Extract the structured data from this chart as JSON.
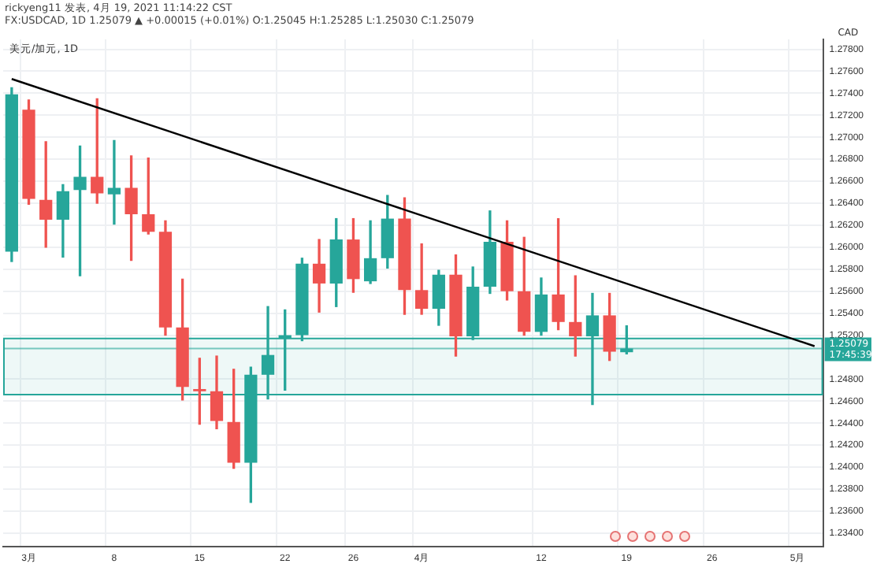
{
  "chart_data": {
    "type": "candlestick",
    "title": "美元/加元, 1D",
    "subtitle": "FX:USDCAD, 1D 1.25079 ▲ +0.00015 (+0.01%) O:1.25045 H:1.25285 L:1.25030 C:1.25079",
    "annotations": [
      "rickyeng11 发表, 4月 19, 2021 11:14:22 CST"
    ],
    "ylabel": "CAD",
    "categories": [
      null,
      "3月",
      null,
      null,
      null,
      null,
      "8",
      null,
      null,
      null,
      null,
      "15",
      null,
      null,
      null,
      null,
      "22",
      null,
      null,
      null,
      "26",
      null,
      null,
      null,
      "4月",
      null,
      null,
      null,
      null,
      null,
      null,
      "12",
      null,
      null,
      null,
      null,
      "19",
      null,
      null,
      null,
      null,
      "26",
      null,
      null,
      null,
      null,
      "5月",
      null
    ],
    "ohlc": [
      [
        1.2596,
        1.2745,
        1.2587,
        1.2739
      ],
      [
        1.2725,
        1.2734,
        1.2639,
        1.2644
      ],
      [
        1.2643,
        1.2696,
        1.26,
        1.2625
      ],
      [
        1.2625,
        1.2657,
        1.2591,
        1.2651
      ],
      [
        1.2652,
        1.2692,
        1.2574,
        1.2664
      ],
      [
        1.2664,
        1.2735,
        1.264,
        1.2649
      ],
      [
        1.2648,
        1.2697,
        1.2621,
        1.2654
      ],
      [
        1.2654,
        1.2683,
        1.2588,
        1.263
      ],
      [
        1.263,
        1.2681,
        1.2612,
        1.2614
      ],
      [
        1.2614,
        1.2624,
        1.252,
        1.2527
      ],
      [
        1.2527,
        1.2571,
        1.2461,
        1.2473
      ],
      [
        1.2471,
        1.2499,
        1.2439,
        1.2469
      ],
      [
        1.2469,
        1.2501,
        1.2435,
        1.2442
      ],
      [
        1.2441,
        1.2489,
        1.2399,
        1.2404
      ],
      [
        1.2404,
        1.2491,
        1.2368,
        1.2484
      ],
      [
        1.2484,
        1.2546,
        1.2462,
        1.2502
      ],
      [
        1.2517,
        1.2543,
        1.247,
        1.252
      ],
      [
        1.252,
        1.259,
        1.2515,
        1.2585
      ],
      [
        1.2585,
        1.2607,
        1.2541,
        1.2567
      ],
      [
        1.2567,
        1.2626,
        1.2546,
        1.2607
      ],
      [
        1.2607,
        1.2626,
        1.2559,
        1.2571
      ],
      [
        1.2569,
        1.2624,
        1.2567,
        1.259
      ],
      [
        1.259,
        1.2647,
        1.2581,
        1.2626
      ],
      [
        1.2626,
        1.2645,
        1.2539,
        1.2561
      ],
      [
        1.2561,
        1.2603,
        1.2539,
        1.2544
      ],
      [
        1.2544,
        1.2579,
        1.2529,
        1.2575
      ],
      [
        1.2575,
        1.2593,
        1.2501,
        1.2519
      ],
      [
        1.2519,
        1.2582,
        1.2516,
        1.2564
      ],
      [
        1.2564,
        1.2633,
        1.2558,
        1.2605
      ],
      [
        1.2605,
        1.2624,
        1.2552,
        1.256
      ],
      [
        1.256,
        1.2609,
        1.252,
        1.2523
      ],
      [
        1.2523,
        1.2572,
        1.252,
        1.2557
      ],
      [
        1.2557,
        1.2626,
        1.2525,
        1.2532
      ],
      [
        1.2532,
        1.2574,
        1.2501,
        1.2519
      ],
      [
        1.2519,
        1.2558,
        1.2457,
        1.2538
      ],
      [
        1.2538,
        1.2558,
        1.2497,
        1.2505
      ],
      [
        1.25045,
        1.25285,
        1.2503,
        1.25079
      ],
      null,
      null,
      null,
      null,
      null,
      null,
      null,
      null,
      null,
      null,
      null
    ],
    "colors": [
      "#26a69a",
      "#ef5350",
      "#ef5350",
      "#26a69a",
      "#26a69a",
      "#ef5350",
      "#26a69a",
      "#ef5350",
      "#ef5350",
      "#ef5350",
      "#ef5350",
      "#ef5350",
      "#ef5350",
      "#ef5350",
      "#26a69a",
      "#26a69a",
      "#26a69a",
      "#26a69a",
      "#ef5350",
      "#26a69a",
      "#ef5350",
      "#26a69a",
      "#26a69a",
      "#ef5350",
      "#ef5350",
      "#26a69a",
      "#ef5350",
      "#26a69a",
      "#26a69a",
      "#ef5350",
      "#ef5350",
      "#26a69a",
      "#ef5350",
      "#ef5350",
      "#26a69a",
      "#ef5350",
      "#26a69a",
      null,
      null,
      null,
      null,
      null,
      null,
      null,
      null,
      null,
      null,
      null
    ],
    "series": [
      {
        "type": "line",
        "color": "#000000",
        "values": [
          1.2753,
          null,
          null,
          null,
          null,
          null,
          null,
          null,
          null,
          null,
          null,
          null,
          null,
          null,
          null,
          null,
          null,
          null,
          null,
          null,
          null,
          null,
          null,
          null,
          null,
          null,
          null,
          null,
          null,
          null,
          null,
          null,
          null,
          null,
          null,
          null,
          null,
          null,
          null,
          null,
          null,
          null,
          null,
          null,
          null,
          null,
          null,
          1.251
        ]
      }
    ],
    "ref_lines": [
      {
        "axis": "y",
        "value": 1.25079,
        "label": "1.25079 17:45:39",
        "color": "#26a69a"
      }
    ],
    "bands": [
      {
        "axis": "y",
        "from": 1.2466,
        "to": 1.2517,
        "color": "#26a69a"
      }
    ],
    "ylim": [
      1.2328,
      1.2789
    ],
    "yticks": [
      {
        "value": 1.234,
        "label": "1.23400"
      },
      {
        "value": 1.236,
        "label": "1.23600"
      },
      {
        "value": 1.238,
        "label": "1.23800"
      },
      {
        "value": 1.24,
        "label": "1.24000"
      },
      {
        "value": 1.242,
        "label": "1.24200"
      },
      {
        "value": 1.244,
        "label": "1.24400"
      },
      {
        "value": 1.246,
        "label": "1.24600"
      },
      {
        "value": 1.248,
        "label": "1.24800"
      },
      {
        "value": 1.252,
        "label": "1.25200"
      },
      {
        "value": 1.254,
        "label": "1.25400"
      },
      {
        "value": 1.256,
        "label": "1.25600"
      },
      {
        "value": 1.258,
        "label": "1.25800"
      },
      {
        "value": 1.26,
        "label": "1.26000"
      },
      {
        "value": 1.262,
        "label": "1.26200"
      },
      {
        "value": 1.264,
        "label": "1.26400"
      },
      {
        "value": 1.266,
        "label": "1.26600"
      },
      {
        "value": 1.268,
        "label": "1.26800"
      },
      {
        "value": 1.27,
        "label": "1.27000"
      },
      {
        "value": 1.272,
        "label": "1.27200"
      },
      {
        "value": 1.274,
        "label": "1.27400"
      },
      {
        "value": 1.276,
        "label": "1.27600"
      },
      {
        "value": 1.278,
        "label": "1.27800"
      }
    ],
    "grid": true,
    "legend": false
  }
}
